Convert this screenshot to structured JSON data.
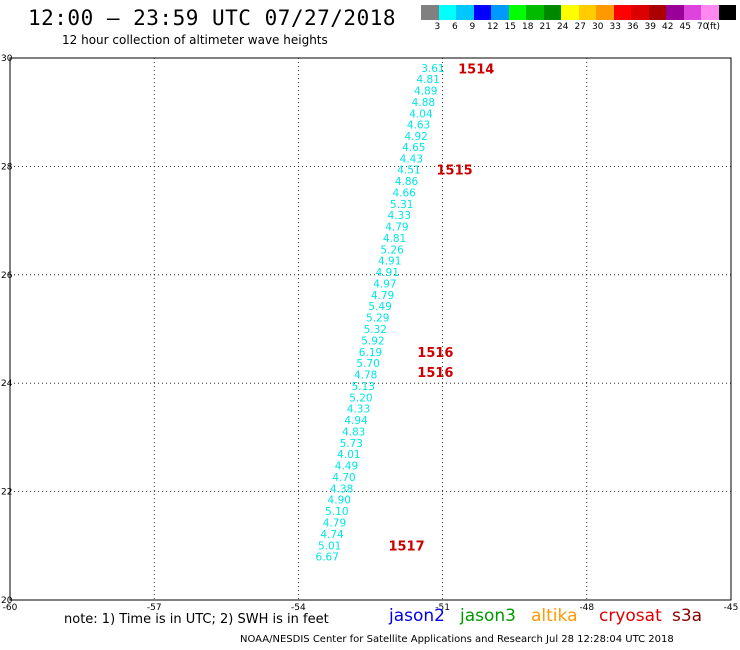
{
  "header": {
    "title": "12:00 – 23:59 UTC 07/27/2018",
    "subtitle": "12 hour collection of altimeter wave heights"
  },
  "legend": {
    "colors": [
      "#808080",
      "#00ffff",
      "#00c8ff",
      "#0000ff",
      "#0099ff",
      "#00ff00",
      "#00bb00",
      "#008800",
      "#ffff00",
      "#ffcc00",
      "#ff9900",
      "#ff0000",
      "#dd0000",
      "#aa0000",
      "#990099",
      "#dd44dd",
      "#ff88ee",
      "#000000"
    ],
    "ticks": [
      "3",
      "6",
      "9",
      "12",
      "15",
      "18",
      "21",
      "24",
      "27",
      "30",
      "33",
      "36",
      "39",
      "42",
      "45",
      "70",
      "(ft)"
    ]
  },
  "footer": {
    "note": "note: 1) Time is in UTC; 2) SWH is in feet",
    "satellites": [
      {
        "name": "jason2",
        "color": "#0000ee"
      },
      {
        "name": "jason3",
        "color": "#009900"
      },
      {
        "name": "altika",
        "color": "#ff9900"
      },
      {
        "name": "cryosat",
        "color": "#dd0000"
      },
      {
        "name": "s3a",
        "color": "#880000"
      }
    ],
    "credit": "NOAA/NESDIS Center for Satellite Applications and Research    Jul 28 12:28:04 UTC 2018"
  },
  "chart_data": {
    "type": "scatter",
    "xlim": [
      -60,
      -45
    ],
    "ylim": [
      20,
      30
    ],
    "x_ticks": [
      "-60",
      "-57",
      "-54",
      "-51",
      "-48",
      "-45"
    ],
    "y_ticks": [
      "20",
      "22",
      "24",
      "26",
      "28",
      "30"
    ],
    "grid": true,
    "point_color": "#00e5e5",
    "points": [
      {
        "lon": -51.2,
        "lat": 29.82,
        "label": "3.61"
      },
      {
        "lon": -51.3,
        "lat": 29.61,
        "label": "4.81"
      },
      {
        "lon": -51.35,
        "lat": 29.4,
        "label": "4.89"
      },
      {
        "lon": -51.4,
        "lat": 29.19,
        "label": "4.88"
      },
      {
        "lon": -51.45,
        "lat": 28.98,
        "label": "4.04"
      },
      {
        "lon": -51.5,
        "lat": 28.77,
        "label": "4.63"
      },
      {
        "lon": -51.55,
        "lat": 28.56,
        "label": "4.92"
      },
      {
        "lon": -51.6,
        "lat": 28.36,
        "label": "4.65"
      },
      {
        "lon": -51.65,
        "lat": 28.15,
        "label": "4.43"
      },
      {
        "lon": -51.7,
        "lat": 27.94,
        "label": "4.51"
      },
      {
        "lon": -51.75,
        "lat": 27.73,
        "label": "4.86"
      },
      {
        "lon": -51.8,
        "lat": 27.52,
        "label": "4.66"
      },
      {
        "lon": -51.85,
        "lat": 27.31,
        "label": "5.31"
      },
      {
        "lon": -51.9,
        "lat": 27.1,
        "label": "4.33"
      },
      {
        "lon": -51.95,
        "lat": 26.89,
        "label": "4.79"
      },
      {
        "lon": -52.0,
        "lat": 26.68,
        "label": "4.81"
      },
      {
        "lon": -52.05,
        "lat": 26.47,
        "label": "5.26"
      },
      {
        "lon": -52.1,
        "lat": 26.26,
        "label": "4.91"
      },
      {
        "lon": -52.15,
        "lat": 26.05,
        "label": "4.91"
      },
      {
        "lon": -52.2,
        "lat": 25.84,
        "label": "4.97"
      },
      {
        "lon": -52.25,
        "lat": 25.63,
        "label": "4.79"
      },
      {
        "lon": -52.3,
        "lat": 25.42,
        "label": "5.49"
      },
      {
        "lon": -52.35,
        "lat": 25.21,
        "label": "5.29"
      },
      {
        "lon": -52.4,
        "lat": 25.0,
        "label": "5.32"
      },
      {
        "lon": -52.45,
        "lat": 24.79,
        "label": "5.92"
      },
      {
        "lon": -52.5,
        "lat": 24.58,
        "label": "6.19"
      },
      {
        "lon": -52.55,
        "lat": 24.37,
        "label": "5.70"
      },
      {
        "lon": -52.6,
        "lat": 24.16,
        "label": "4.78"
      },
      {
        "lon": -52.65,
        "lat": 23.95,
        "label": "5.13"
      },
      {
        "lon": -52.7,
        "lat": 23.74,
        "label": "5.20"
      },
      {
        "lon": -52.75,
        "lat": 23.53,
        "label": "4.33"
      },
      {
        "lon": -52.8,
        "lat": 23.32,
        "label": "4.94"
      },
      {
        "lon": -52.85,
        "lat": 23.11,
        "label": "4.83"
      },
      {
        "lon": -52.9,
        "lat": 22.9,
        "label": "5.73"
      },
      {
        "lon": -52.95,
        "lat": 22.69,
        "label": "4.01"
      },
      {
        "lon": -53.0,
        "lat": 22.48,
        "label": "4.49"
      },
      {
        "lon": -53.05,
        "lat": 22.27,
        "label": "4.70"
      },
      {
        "lon": -53.1,
        "lat": 22.06,
        "label": "4.38"
      },
      {
        "lon": -53.15,
        "lat": 21.85,
        "label": "4.90"
      },
      {
        "lon": -53.2,
        "lat": 21.64,
        "label": "5.10"
      },
      {
        "lon": -53.25,
        "lat": 21.43,
        "label": "4.79"
      },
      {
        "lon": -53.3,
        "lat": 21.22,
        "label": "4.74"
      },
      {
        "lon": -53.35,
        "lat": 21.01,
        "label": "5.01"
      },
      {
        "lon": -53.4,
        "lat": 20.8,
        "label": "6.67"
      }
    ],
    "annotations": [
      {
        "text": "1514",
        "lon": -50.3,
        "lat": 29.81,
        "color": "#cc0000"
      },
      {
        "text": "1515",
        "lon": -50.75,
        "lat": 27.94,
        "color": "#cc0000"
      },
      {
        "text": "1516",
        "lon": -51.15,
        "lat": 24.58,
        "color": "#cc0000"
      },
      {
        "text": "1516",
        "lon": -51.15,
        "lat": 24.21,
        "color": "#cc0000"
      },
      {
        "text": "1517",
        "lon": -51.75,
        "lat": 21.01,
        "color": "#cc0000"
      }
    ]
  }
}
